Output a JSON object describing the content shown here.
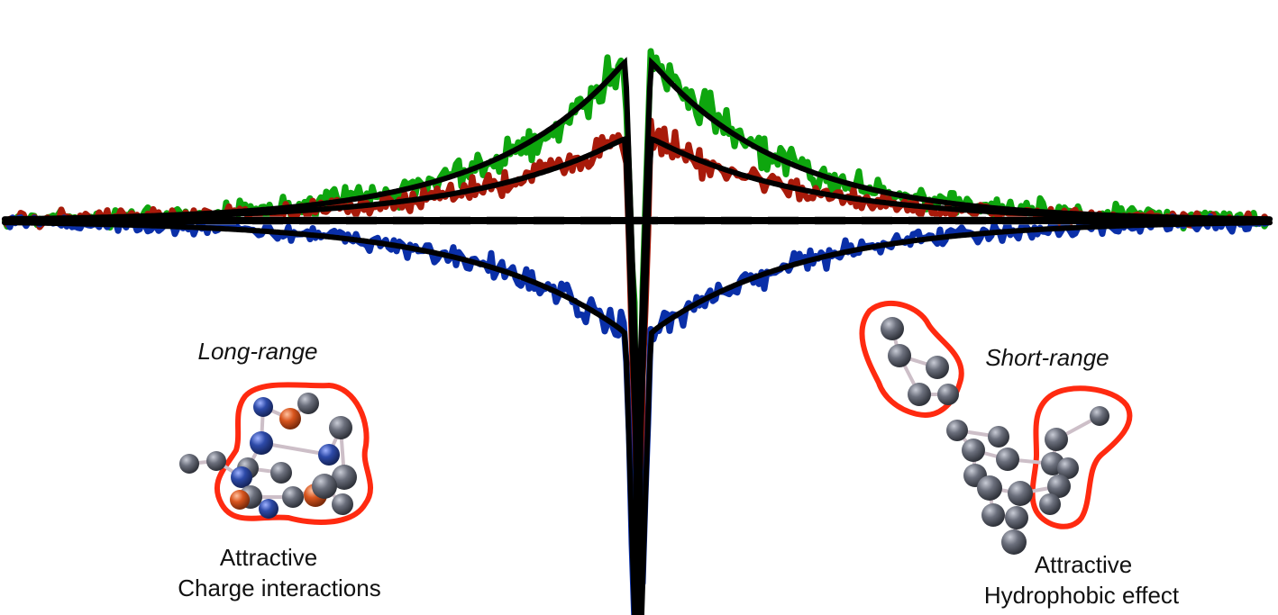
{
  "labels": {
    "long_range": "Long-range",
    "long_range_effect_1": "Attractive",
    "long_range_effect_2": "Charge interactions",
    "short_range": "Short-range",
    "short_range_effect_1": "Attractive",
    "short_range_effect_2": "Hydrophobic effect"
  },
  "colors": {
    "green_trace": "#0ea60e",
    "red_trace": "#a81a0a",
    "blue_trace": "#0a2fa8",
    "fit_curve": "#000000",
    "baseline": "#888888",
    "highlight": "#ff2a10",
    "bead_gray": "#6b6f7c",
    "bead_blue": "#2d4aa8",
    "bead_orange": "#d8551e"
  }
}
